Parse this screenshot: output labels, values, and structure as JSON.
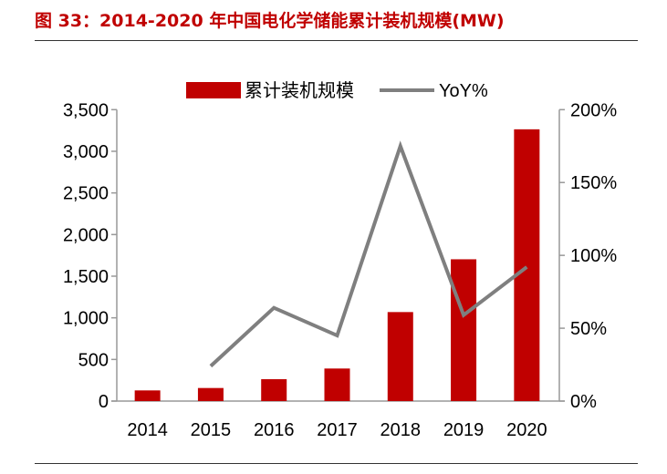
{
  "title": "图 33：2014-2020 年中国电化学储能累计装机规模(MW)",
  "chart_data": {
    "type": "bar+line",
    "categories": [
      "2014",
      "2015",
      "2016",
      "2017",
      "2018",
      "2019",
      "2020"
    ],
    "series": [
      {
        "name": "累计装机规模",
        "type": "bar",
        "axis": "left",
        "color": "#c00000",
        "values": [
          128,
          157,
          263,
          391,
          1069,
          1703,
          3264
        ]
      },
      {
        "name": "YoY%",
        "type": "line",
        "axis": "right",
        "color": "#7f7f7f",
        "values": [
          null,
          24,
          64,
          45,
          175,
          59,
          92
        ]
      }
    ],
    "left_axis": {
      "ylim": [
        0,
        3500
      ],
      "ticks": [
        "0",
        "500",
        "1,000",
        "1,500",
        "2,000",
        "2,500",
        "3,000",
        "3,500"
      ]
    },
    "right_axis": {
      "ylim": [
        0,
        200
      ],
      "ticks": [
        "0%",
        "50%",
        "100%",
        "150%",
        "200%"
      ]
    },
    "legend": "top",
    "grid": false
  }
}
